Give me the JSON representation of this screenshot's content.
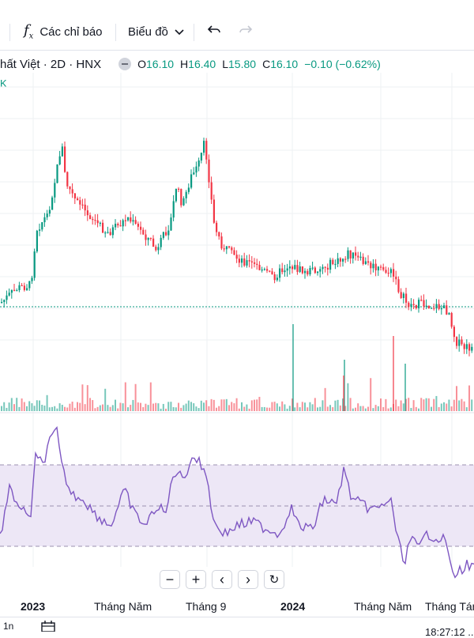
{
  "toolbar": {
    "indicators_label": "Các chỉ báo",
    "chart_label": "Biểu đồ",
    "fx_icon": "fx-icon",
    "undo_icon": "undo-icon",
    "redo_icon": "redo-icon"
  },
  "legend": {
    "symbol": "hất Việt · 2D · HNX",
    "o_label": "O",
    "o_value": "16.10",
    "h_label": "H",
    "h_value": "16.40",
    "l_label": "L",
    "l_value": "15.80",
    "c_label": "C",
    "c_value": "16.10",
    "change": "−0.10 (−0.62%)",
    "sub": "K"
  },
  "x_axis": {
    "labels": [
      "2023",
      "Tháng Năm",
      "Tháng 9",
      "2024",
      "Tháng Năm",
      "Tháng Tám"
    ]
  },
  "bottom": {
    "time": "18:27:12 ..",
    "left_text": "1n"
  },
  "colors": {
    "up": "#089981",
    "down": "#f23645",
    "rsi": "#7e57c2",
    "rsi_band": "#ede7f6"
  }
}
